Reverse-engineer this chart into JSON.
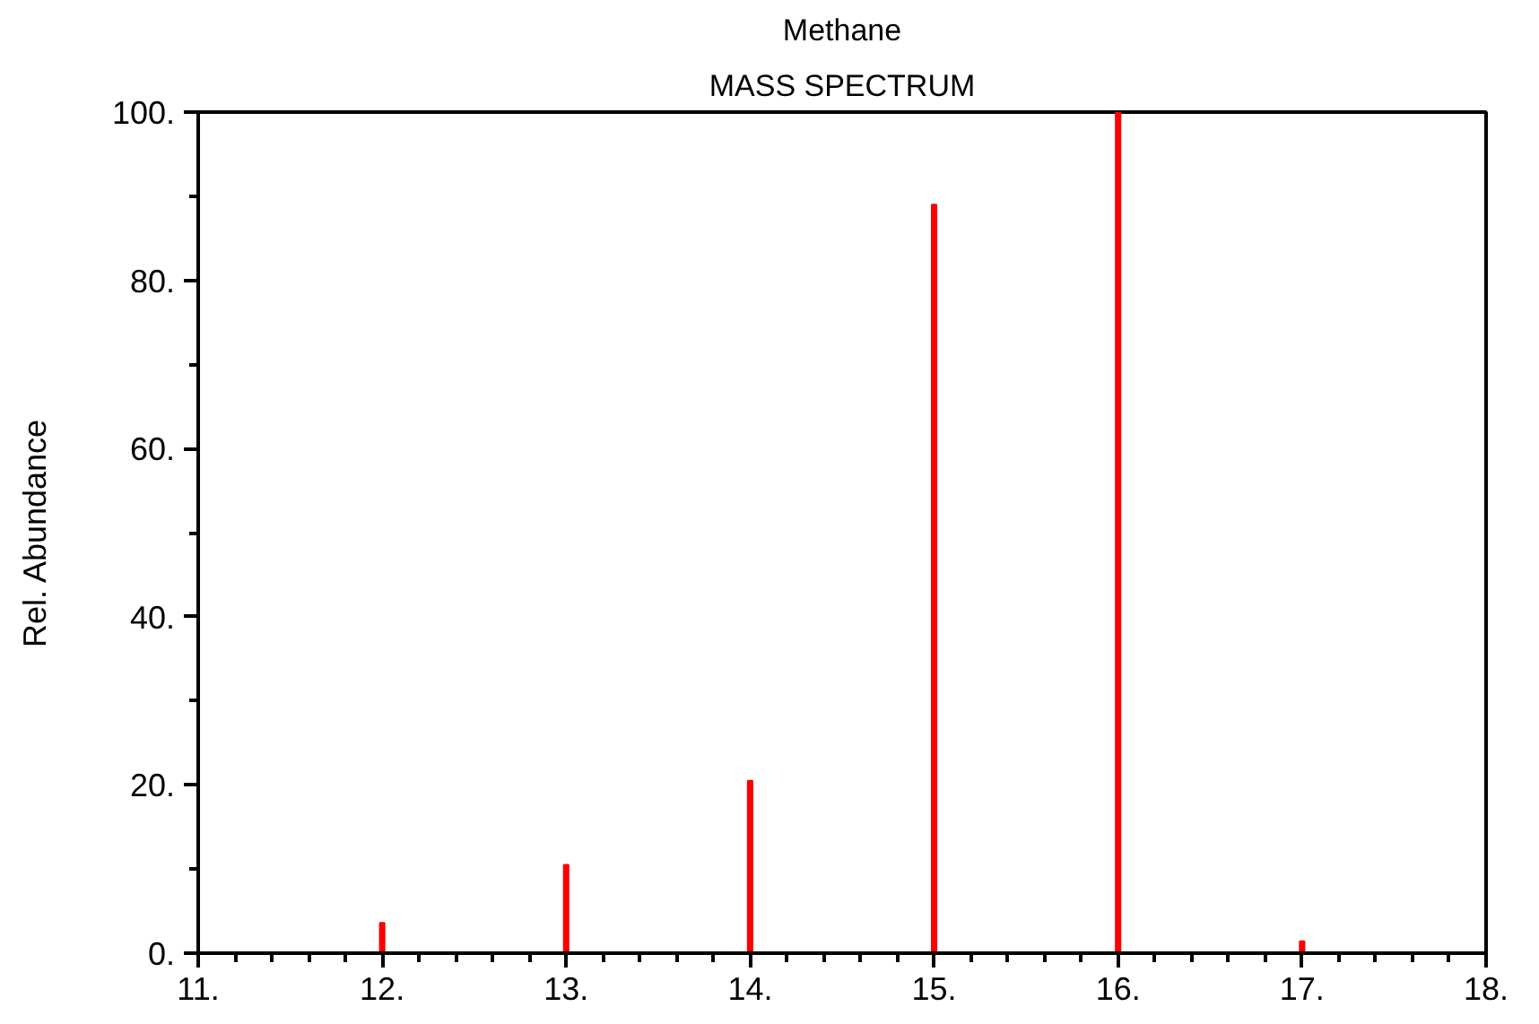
{
  "chart_data": {
    "type": "bar",
    "title": "Methane",
    "subtitle": "MASS SPECTRUM",
    "ylabel": "Rel. Abundance",
    "x": [
      12,
      13,
      14,
      15,
      16,
      17
    ],
    "values": [
      3.6,
      10.5,
      20.5,
      89,
      100,
      1.4
    ],
    "color": "#ff0000",
    "xlim": [
      11,
      18
    ],
    "ylim": [
      0,
      100
    ],
    "xticks": [
      {
        "value": 11,
        "label": "11."
      },
      {
        "value": 12,
        "label": "12."
      },
      {
        "value": 13,
        "label": "13."
      },
      {
        "value": 14,
        "label": "14."
      },
      {
        "value": 15,
        "label": "15."
      },
      {
        "value": 16,
        "label": "16."
      },
      {
        "value": 17,
        "label": "17."
      },
      {
        "value": 18,
        "label": "18."
      }
    ],
    "yticks": [
      {
        "value": 0,
        "label": "0."
      },
      {
        "value": 20,
        "label": "20."
      },
      {
        "value": 40,
        "label": "40."
      },
      {
        "value": 60,
        "label": "60."
      },
      {
        "value": 80,
        "label": "80."
      },
      {
        "value": 100,
        "label": "100."
      }
    ],
    "grid": false
  }
}
